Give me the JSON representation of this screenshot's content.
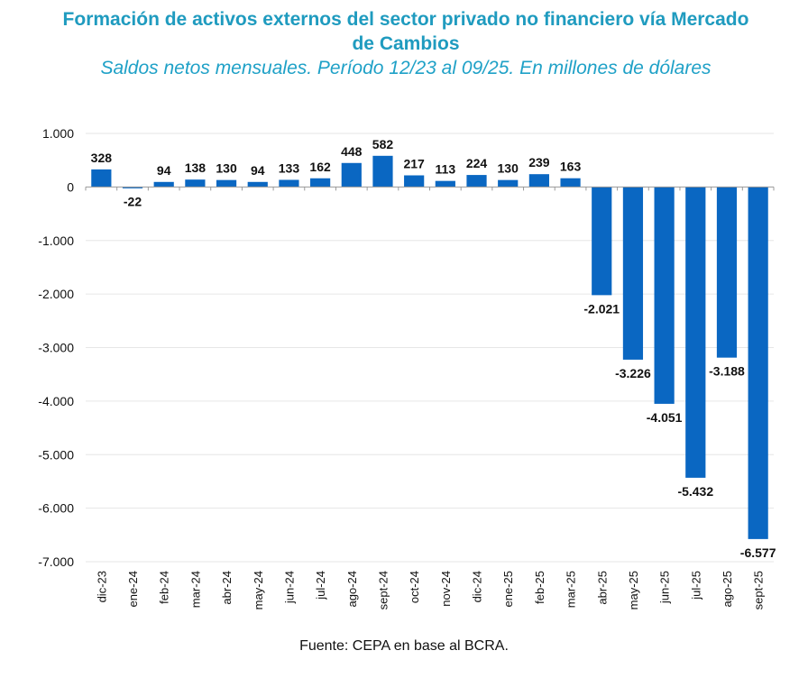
{
  "chart_data": {
    "type": "bar",
    "title": "Formación de activos externos del sector privado no financiero vía Mercado de Cambios",
    "subtitle": "Saldos netos mensuales. Período 12/23 al 09/25. En millones de dólares",
    "xlabel": "",
    "ylabel": "",
    "ylim": [
      -7000,
      1000
    ],
    "yticks": [
      1000,
      0,
      -1000,
      -2000,
      -3000,
      -4000,
      -5000,
      -6000,
      -7000
    ],
    "ytick_labels": [
      "1.000",
      "0",
      "-1.000",
      "-2.000",
      "-3.000",
      "-4.000",
      "-5.000",
      "-6.000",
      "-7.000"
    ],
    "grid": true,
    "bar_color": "#0a67c2",
    "categories": [
      "dic-23",
      "ene-24",
      "feb-24",
      "mar-24",
      "abr-24",
      "may-24",
      "jun-24",
      "jul-24",
      "ago-24",
      "sept-24",
      "oct-24",
      "nov-24",
      "dic-24",
      "ene-25",
      "feb-25",
      "mar-25",
      "abr-25",
      "may-25",
      "jun-25",
      "jul-25",
      "ago-25",
      "sept-25"
    ],
    "values": [
      328,
      -22,
      94,
      138,
      130,
      94,
      133,
      162,
      448,
      582,
      217,
      113,
      224,
      130,
      239,
      163,
      -2021,
      -3226,
      -4051,
      -5432,
      -3188,
      -6577
    ],
    "value_labels": [
      "328",
      "-22",
      "94",
      "138",
      "130",
      "94",
      "133",
      "162",
      "448",
      "582",
      "217",
      "113",
      "224",
      "130",
      "239",
      "163",
      "-2.021",
      "-3.226",
      "-4.051",
      "-5.432",
      "-3.188",
      "-6.577"
    ],
    "source": "Fuente: CEPA en base al BCRA."
  }
}
